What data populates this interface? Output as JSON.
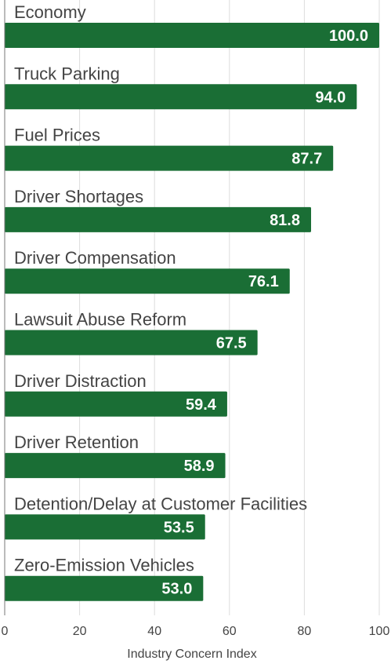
{
  "chart_data": {
    "type": "bar",
    "orientation": "horizontal",
    "categories": [
      "Economy",
      "Truck Parking",
      "Fuel Prices",
      "Driver Shortages",
      "Driver Compensation",
      "Lawsuit Abuse Reform",
      "Driver Distraction",
      "Driver Retention",
      "Detention/Delay at Customer Facilities",
      "Zero-Emission Vehicles"
    ],
    "values": [
      100.0,
      94.0,
      87.7,
      81.8,
      76.1,
      67.5,
      59.4,
      58.9,
      53.5,
      53.0
    ],
    "value_labels": [
      "100.0",
      "94.0",
      "87.7",
      "81.8",
      "76.1",
      "67.5",
      "59.4",
      "58.9",
      "53.5",
      "53.0"
    ],
    "xlabel": "Industry Concern Index",
    "xlim": [
      0,
      100
    ],
    "xticks": [
      "0",
      "20",
      "40",
      "60",
      "80",
      "100"
    ],
    "xtick_values": [
      0,
      20,
      40,
      60,
      80,
      100
    ],
    "grid": true,
    "bar_color": "#1a6e35",
    "label_color": "#ffffff",
    "text_color": "#444444",
    "grid_color": "#dddddd",
    "axis_color": "#777777"
  }
}
